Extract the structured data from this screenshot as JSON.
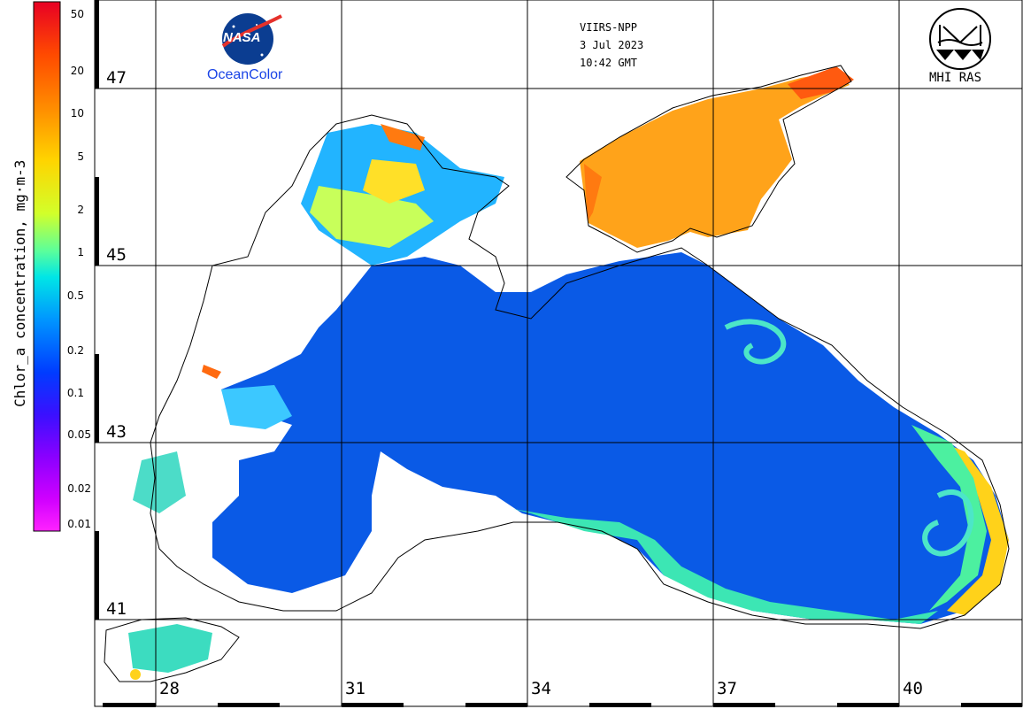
{
  "colorbar": {
    "title": "Chlor_a concentration, mg·m-3",
    "ticks": [
      "50",
      "20",
      "10",
      "5",
      "2",
      "1",
      "0.5",
      "0.2",
      "0.1",
      "0.05",
      "0.02",
      "0.01"
    ],
    "gradient": [
      "#e8002a",
      "#ff5a00",
      "#ff9a00",
      "#ffd200",
      "#c8ff3a",
      "#3cffb4",
      "#00d2ff",
      "#0064ff",
      "#2a1eff",
      "#8a00ff",
      "#d400ff",
      "#ff00ff"
    ]
  },
  "map": {
    "lat_labels": [
      "47",
      "45",
      "43",
      "41"
    ],
    "lon_labels": [
      "28",
      "31",
      "34",
      "37",
      "40"
    ]
  },
  "info": {
    "sensor": "VIIRS-NPP",
    "date": "3 Jul 2023",
    "time": "10:42 GMT"
  },
  "logos": {
    "nasa_text": "NASA",
    "oceancolor_text": "OceanColor",
    "mhi_text": "MHI RAS"
  }
}
